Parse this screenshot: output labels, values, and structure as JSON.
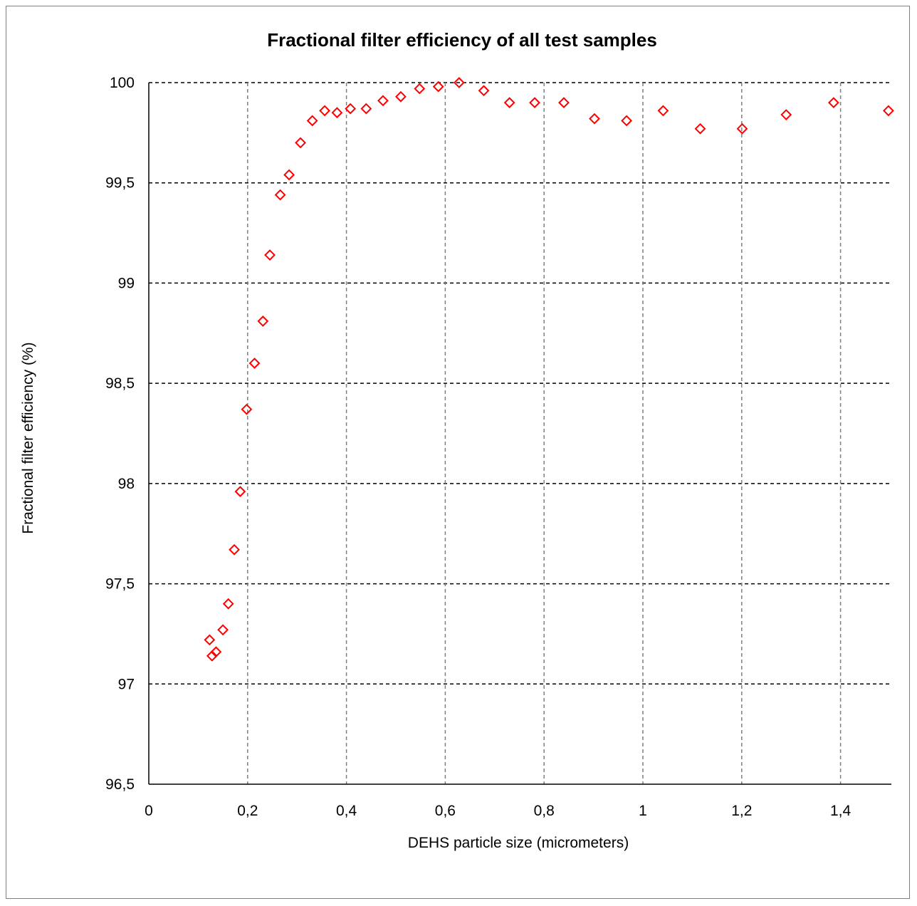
{
  "chart_data": {
    "type": "scatter",
    "title": "Fractional filter efficiency of all test samples",
    "xlabel": "DEHS particle size (micrometers)",
    "ylabel": "Fractional filter efficiency (%)",
    "xlim": [
      0,
      1.5
    ],
    "ylim": [
      96.5,
      100
    ],
    "x_ticks": [
      0,
      0.2,
      0.4,
      0.6,
      0.8,
      1,
      1.2,
      1.4
    ],
    "x_tick_labels": [
      "0",
      "0,2",
      "0,4",
      "0,6",
      "0,8",
      "1",
      "1,2",
      "1,4"
    ],
    "y_ticks": [
      96.5,
      97,
      97.5,
      98,
      98.5,
      99,
      99.5,
      100
    ],
    "y_tick_labels": [
      "96,5",
      "97",
      "97,5",
      "98",
      "98,5",
      "99",
      "99,5",
      "100"
    ],
    "grid": true,
    "legend": "none",
    "marker": "diamond-outline",
    "marker_color": "#ff0000",
    "series": [
      {
        "x": [
          0.123,
          0.128,
          0.136,
          0.15,
          0.161,
          0.173,
          0.185,
          0.198,
          0.214,
          0.231,
          0.245,
          0.266,
          0.284,
          0.307,
          0.331,
          0.356,
          0.381,
          0.408,
          0.44,
          0.474,
          0.51,
          0.548,
          0.586,
          0.628,
          0.678,
          0.73,
          0.781,
          0.84,
          0.902,
          0.967,
          1.041,
          1.116,
          1.201,
          1.29,
          1.386,
          1.497
        ],
        "y": [
          97.22,
          97.14,
          97.16,
          97.27,
          97.4,
          97.67,
          97.96,
          98.37,
          98.6,
          98.81,
          99.14,
          99.44,
          99.54,
          99.7,
          99.81,
          99.86,
          99.85,
          99.87,
          99.87,
          99.91,
          99.93,
          99.97,
          99.98,
          100.0,
          99.96,
          99.9,
          99.9,
          99.9,
          99.82,
          99.81,
          99.86,
          99.77,
          99.77,
          99.84,
          99.9,
          99.86
        ]
      }
    ]
  }
}
